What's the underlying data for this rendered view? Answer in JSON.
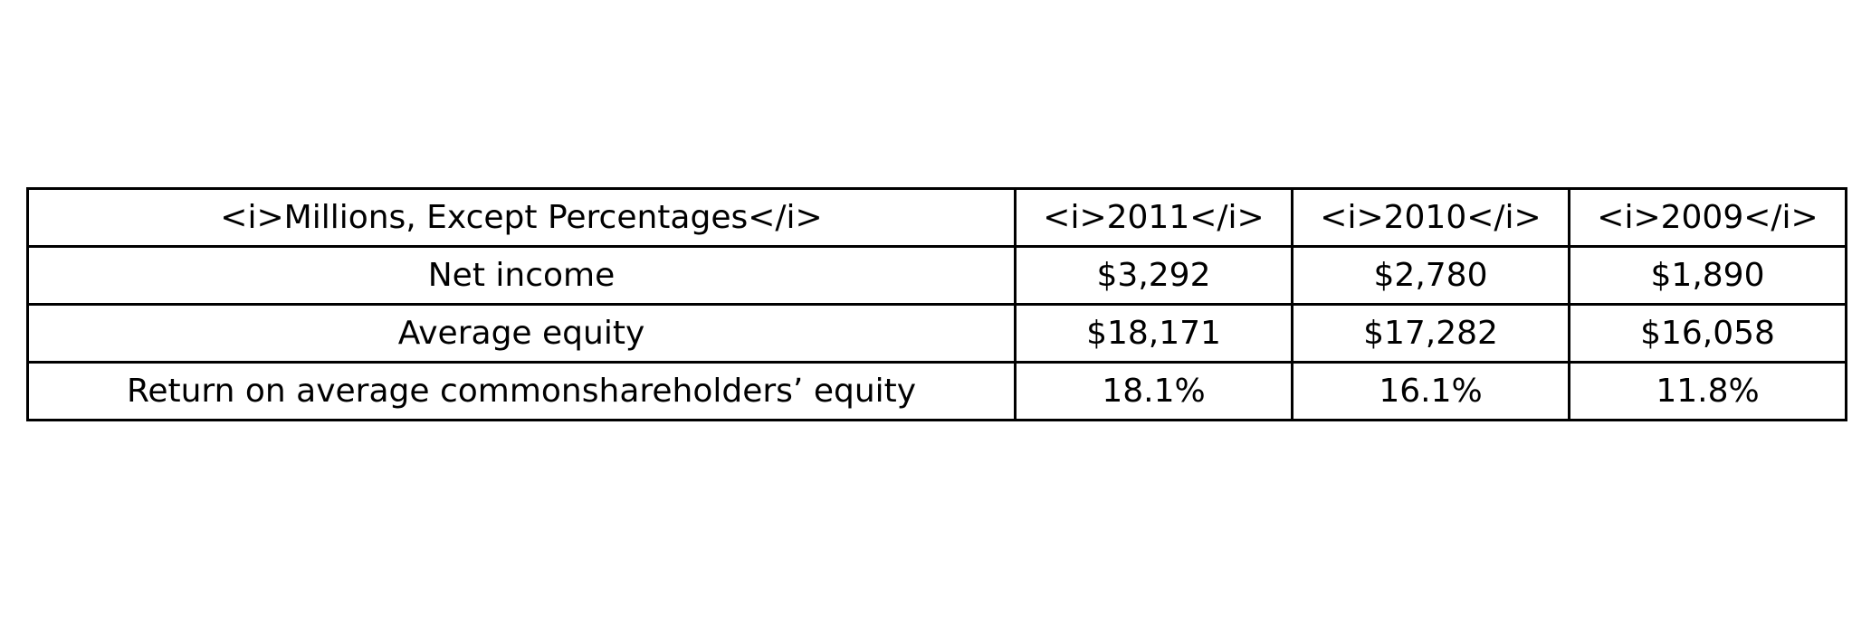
{
  "table": {
    "header": [
      "<i>Millions, Except Percentages</i>",
      "<i>2011</i>",
      "<i>2010</i>",
      "<i>2009</i>"
    ],
    "rows": [
      [
        "Net income",
        "$3,292",
        "$2,780",
        "$1,890"
      ],
      [
        "Average equity",
        "$18,171",
        "$17,282",
        "$16,058"
      ],
      [
        "Return on average commonshareholders’ equity",
        "18.1%",
        "16.1%",
        "11.8%"
      ]
    ]
  }
}
